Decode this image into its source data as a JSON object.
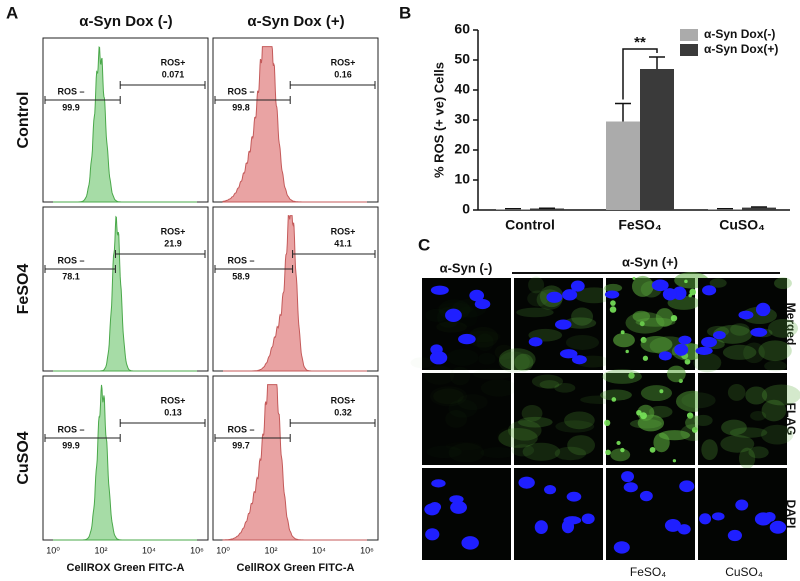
{
  "panel_a": {
    "label": "A",
    "columns": [
      "α-Syn Dox (-)",
      "α-Syn Dox (+)"
    ],
    "rows": [
      "Control",
      "FeSO4",
      "CuSO4"
    ],
    "gate_labels": {
      "negative": "ROS –",
      "positive": "ROS+"
    },
    "cells": [
      [
        {
          "negative": "99.9",
          "positive": "0.071"
        },
        {
          "negative": "99.8",
          "positive": "0.16"
        }
      ],
      [
        {
          "negative": "78.1",
          "positive": "21.9"
        },
        {
          "negative": "58.9",
          "positive": "41.1"
        }
      ],
      [
        {
          "negative": "99.9",
          "positive": "0.13"
        },
        {
          "negative": "99.7",
          "positive": "0.32"
        }
      ]
    ],
    "xticks": [
      "10⁰",
      "10²",
      "10⁴",
      "10⁶"
    ],
    "xlabel": "CellROX Green FITC-A"
  },
  "chart_data": {
    "type": "bar",
    "panel_label": "B",
    "ylabel": "% ROS (+ ve) Cells",
    "categories": [
      "Control",
      "FeSO₄",
      "CuSO₄"
    ],
    "series": [
      {
        "name": "α-Syn Dox(-)",
        "color": "#ababab",
        "values": [
          0.3,
          29.5,
          0.3
        ],
        "errors": [
          0.1,
          6,
          0.1
        ]
      },
      {
        "name": "α-Syn Dox(+)",
        "color": "#3a3a3a",
        "values": [
          0.5,
          47,
          0.8
        ],
        "errors": [
          0.1,
          4,
          0.2
        ]
      }
    ],
    "ylim": [
      0,
      60
    ],
    "yticks": [
      0,
      10,
      20,
      30,
      40,
      50,
      60
    ],
    "annotation": "**",
    "legend": "top-right"
  },
  "panel_c": {
    "label": "C",
    "groups": [
      "α-Syn (-)",
      "α-Syn (+)"
    ],
    "rows": [
      "Merged",
      "FLAG",
      "DAPI"
    ],
    "treatments": [
      "FeSO₄",
      "CuSO₄"
    ]
  }
}
